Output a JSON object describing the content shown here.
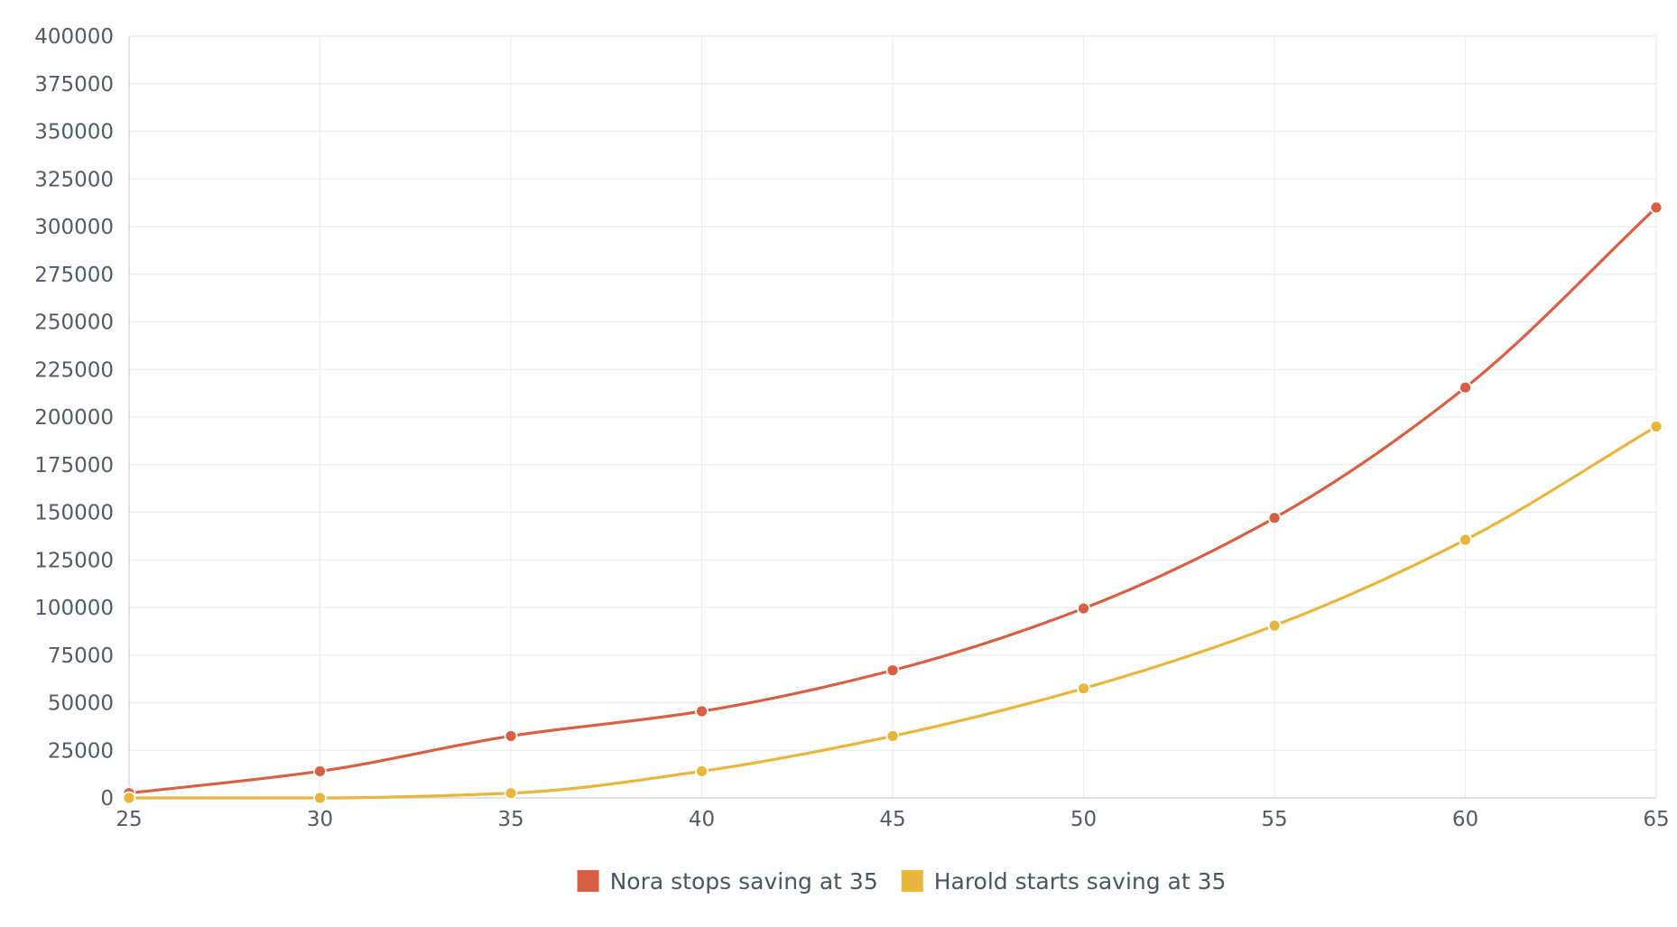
{
  "chart_data": {
    "type": "line",
    "title": "",
    "xlabel": "",
    "ylabel": "",
    "x": [
      25,
      30,
      35,
      40,
      45,
      50,
      55,
      60,
      65
    ],
    "xlim": [
      25,
      65
    ],
    "ylim": [
      0,
      400000
    ],
    "x_ticks": [
      25,
      30,
      35,
      40,
      45,
      50,
      55,
      60,
      65
    ],
    "y_ticks": [
      0,
      25000,
      50000,
      75000,
      100000,
      125000,
      150000,
      175000,
      200000,
      225000,
      250000,
      275000,
      300000,
      325000,
      350000,
      375000,
      400000
    ],
    "grid": true,
    "legend_position": "bottom-center",
    "smooth": true,
    "series": [
      {
        "name": "Nora stops saving at 35",
        "color": "#d95f43",
        "values": [
          2500,
          14000,
          32500,
          45500,
          67000,
          99500,
          147000,
          215500,
          310000
        ]
      },
      {
        "name": "Harold starts saving at 35",
        "color": "#e8b63c",
        "values": [
          0,
          0,
          2500,
          14000,
          32500,
          57500,
          90500,
          135500,
          195000
        ]
      }
    ]
  }
}
